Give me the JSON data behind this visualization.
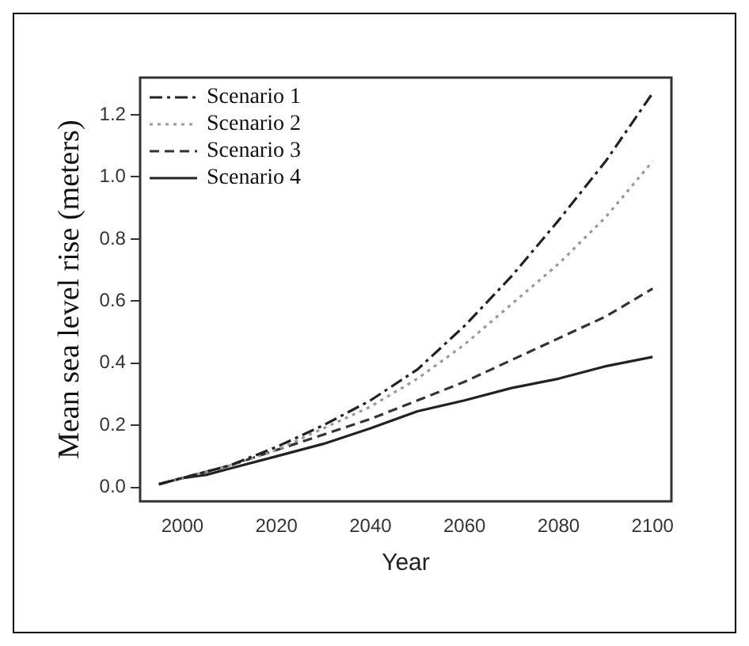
{
  "chart_data": {
    "type": "line",
    "xlabel": "Year",
    "ylabel": "Mean sea level rise (meters)",
    "xlim": [
      1991,
      2104
    ],
    "ylim": [
      -0.045,
      1.32
    ],
    "xticks": [
      2000,
      2020,
      2040,
      2060,
      2080,
      2100
    ],
    "yticks": [
      {
        "value": 0,
        "label": "0.0"
      },
      0.2,
      0.4,
      0.6,
      0.8,
      {
        "value": 1,
        "label": "1.0"
      },
      1.2
    ],
    "grid": false,
    "legend": "top left",
    "marker": "none",
    "series": [
      {
        "name": "Scenario 1",
        "color": "#222222",
        "line_style": "dashdot",
        "x": [
          1995,
          2000,
          2010,
          2020,
          2030,
          2040,
          2050,
          2060,
          2070,
          2080,
          2090,
          2100
        ],
        "values": [
          0.01,
          0.03,
          0.07,
          0.13,
          0.2,
          0.28,
          0.38,
          0.52,
          0.68,
          0.86,
          1.05,
          1.27
        ]
      },
      {
        "name": "Scenario 2",
        "color": "#999999",
        "line_style": "dotted",
        "x": [
          1995,
          2000,
          2010,
          2020,
          2030,
          2040,
          2050,
          2060,
          2070,
          2080,
          2090,
          2100
        ],
        "values": [
          0.01,
          0.03,
          0.07,
          0.12,
          0.19,
          0.26,
          0.35,
          0.46,
          0.59,
          0.72,
          0.87,
          1.05
        ]
      },
      {
        "name": "Scenario 3",
        "color": "#333333",
        "line_style": "dashed",
        "x": [
          1995,
          2000,
          2010,
          2020,
          2030,
          2040,
          2050,
          2060,
          2070,
          2080,
          2090,
          2100
        ],
        "values": [
          0.01,
          0.03,
          0.07,
          0.12,
          0.17,
          0.22,
          0.28,
          0.34,
          0.41,
          0.48,
          0.55,
          0.64
        ]
      },
      {
        "name": "Scenario 4",
        "color": "#222222",
        "line_style": "solid",
        "x": [
          1995,
          2000,
          2005,
          2010,
          2020,
          2030,
          2040,
          2050,
          2060,
          2070,
          2080,
          2090,
          2100
        ],
        "values": [
          0.01,
          0.03,
          0.04,
          0.06,
          0.1,
          0.14,
          0.19,
          0.245,
          0.28,
          0.32,
          0.35,
          0.39,
          0.42
        ]
      }
    ]
  }
}
